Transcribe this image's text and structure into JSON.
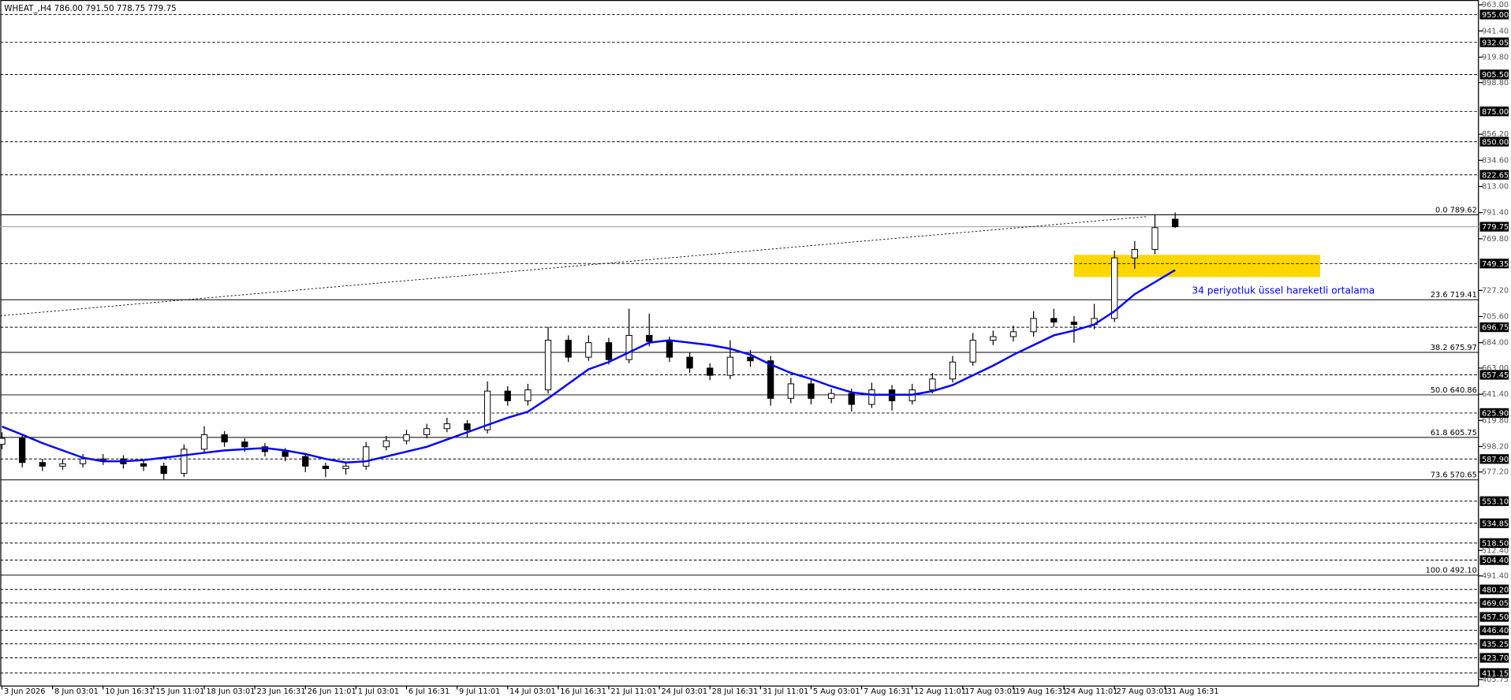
{
  "chart_data": {
    "type": "candlestick",
    "title": "WHEAT_,H4  786.00 791.50 778.75 779.75",
    "ylim": [
      400.8,
      967.0
    ],
    "xlim": [
      -0.5,
      438.1
    ],
    "yticks": [
      {
        "value": 963,
        "label": "963.00"
      },
      {
        "value": 941.4,
        "label": "941.40"
      },
      {
        "value": 919.8,
        "label": "919.80"
      },
      {
        "value": 898.8,
        "label": "898.80"
      },
      {
        "value": 856.2,
        "label": "856.20"
      },
      {
        "value": 834.6,
        "label": "834.60"
      },
      {
        "value": 813,
        "label": "813.00"
      },
      {
        "value": 791.4,
        "label": "791.40"
      },
      {
        "value": 769.8,
        "label": "769.80"
      },
      {
        "value": 727.2,
        "label": "727.20"
      },
      {
        "value": 705.6,
        "label": "705.60"
      },
      {
        "value": 684,
        "label": "684.00"
      },
      {
        "value": 663,
        "label": "663.00"
      },
      {
        "value": 641.4,
        "label": "641.40"
      },
      {
        "value": 619.8,
        "label": "619.80"
      },
      {
        "value": 598.2,
        "label": "598.20"
      },
      {
        "value": 577.2,
        "label": "577.20"
      },
      {
        "value": 512.4,
        "label": "512.40"
      },
      {
        "value": 491.4,
        "label": "491.40"
      },
      {
        "value": 405.75,
        "label": "405.75"
      }
    ],
    "xticks": [
      {
        "value": 0,
        "label": "3 Jun 2026"
      },
      {
        "value": 15,
        "label": "8 Jun 03:01"
      },
      {
        "value": 30,
        "label": "10 Jun 16:31"
      },
      {
        "value": 45,
        "label": "15 Jun 11:01"
      },
      {
        "value": 60,
        "label": "18 Jun 03:01"
      },
      {
        "value": 75,
        "label": "23 Jun 16:31"
      },
      {
        "value": 90,
        "label": "26 Jun 11:01"
      },
      {
        "value": 105,
        "label": "1 Jul 03:01"
      },
      {
        "value": 120,
        "label": "6 Jul 16:31"
      },
      {
        "value": 135,
        "label": "9 Jul 11:01"
      },
      {
        "value": 150,
        "label": "14 Jul 03:01"
      },
      {
        "value": 165,
        "label": "16 Jul 16:31"
      },
      {
        "value": 180,
        "label": "21 Jul 11:01"
      },
      {
        "value": 195,
        "label": "24 Jul 03:01"
      },
      {
        "value": 210,
        "label": "28 Jul 16:31"
      },
      {
        "value": 225,
        "label": "31 Jul 11:01"
      },
      {
        "value": 240,
        "label": "5 Aug 03:01"
      },
      {
        "value": 255,
        "label": "7 Aug 16:31"
      },
      {
        "value": 270,
        "label": "12 Aug 11:01"
      },
      {
        "value": 285,
        "label": "17 Aug 03:01"
      },
      {
        "value": 300,
        "label": "19 Aug 16:31"
      },
      {
        "value": 315,
        "label": "24 Aug 11:01"
      },
      {
        "value": 330,
        "label": "27 Aug 03:01"
      },
      {
        "value": 345,
        "label": "31 Aug 16:31"
      }
    ],
    "x": [
      0,
      6,
      12,
      18,
      24,
      30,
      36,
      42,
      48,
      54,
      60,
      66,
      72,
      78,
      84,
      90,
      96,
      102,
      108,
      114,
      120,
      126,
      132,
      138,
      144,
      150,
      156,
      162,
      168,
      174,
      180,
      186,
      192,
      198,
      204,
      210,
      216,
      222,
      228,
      234,
      240,
      246,
      252,
      258,
      264,
      270,
      276,
      282,
      288,
      294,
      300,
      306,
      312,
      318,
      324,
      330,
      336,
      342,
      348
    ],
    "ohlc": [
      [
        600,
        610,
        596,
        605
      ],
      [
        605,
        608,
        581,
        585
      ],
      [
        585,
        588,
        578,
        582
      ],
      [
        582,
        588,
        579,
        584
      ],
      [
        584,
        592,
        581,
        588
      ],
      [
        588,
        592,
        583,
        588
      ],
      [
        588,
        591,
        580,
        584
      ],
      [
        584,
        587,
        578,
        582
      ],
      [
        582,
        585,
        571,
        576
      ],
      [
        576,
        600,
        573,
        596
      ],
      [
        596,
        615,
        593,
        608
      ],
      [
        608,
        611,
        598,
        602
      ],
      [
        602,
        605,
        594,
        598
      ],
      [
        598,
        601,
        590,
        594
      ],
      [
        594,
        597,
        586,
        590
      ],
      [
        590,
        593,
        577,
        582
      ],
      [
        582,
        585,
        573,
        580
      ],
      [
        580,
        586,
        575,
        582
      ],
      [
        582,
        602,
        579,
        598
      ],
      [
        598,
        607,
        595,
        603
      ],
      [
        603,
        612,
        600,
        608
      ],
      [
        608,
        617,
        605,
        613
      ],
      [
        613,
        622,
        610,
        617
      ],
      [
        617,
        620,
        606,
        612
      ],
      [
        612,
        652,
        609,
        644
      ],
      [
        644,
        648,
        632,
        636
      ],
      [
        636,
        650,
        632,
        645
      ],
      [
        645,
        697,
        642,
        686
      ],
      [
        686,
        690,
        668,
        672
      ],
      [
        672,
        690,
        669,
        684
      ],
      [
        684,
        688,
        666,
        670
      ],
      [
        670,
        712,
        667,
        690
      ],
      [
        690,
        708,
        681,
        685
      ],
      [
        685,
        689,
        668,
        672
      ],
      [
        672,
        676,
        659,
        663
      ],
      [
        663,
        667,
        653,
        657
      ],
      [
        657,
        686,
        654,
        672
      ],
      [
        672,
        678,
        664,
        669
      ],
      [
        669,
        673,
        632,
        638
      ],
      [
        638,
        655,
        634,
        650
      ],
      [
        650,
        654,
        633,
        638
      ],
      [
        638,
        646,
        634,
        642
      ],
      [
        642,
        646,
        627,
        633
      ],
      [
        633,
        651,
        630,
        645
      ],
      [
        645,
        649,
        628,
        636
      ],
      [
        636,
        650,
        633,
        645
      ],
      [
        645,
        659,
        642,
        654
      ],
      [
        654,
        673,
        651,
        668
      ],
      [
        668,
        692,
        665,
        686
      ],
      [
        686,
        694,
        682,
        689
      ],
      [
        689,
        698,
        685,
        693
      ],
      [
        693,
        710,
        689,
        704
      ],
      [
        704,
        712,
        697,
        701
      ],
      [
        701,
        706,
        684,
        699
      ],
      [
        699,
        716,
        695,
        704
      ],
      [
        704,
        760,
        701,
        754
      ],
      [
        754,
        768,
        745,
        761
      ],
      [
        761,
        790,
        757,
        779
      ],
      [
        786,
        791.5,
        778.75,
        779.75
      ]
    ],
    "ema": {
      "color": "#0000ff",
      "label": "34 periyotluk üssel hareketli ortalama",
      "values": [
        614.7,
        608,
        601,
        595,
        589,
        586,
        586,
        587,
        589,
        591,
        593,
        595,
        596,
        597,
        595,
        592,
        588,
        585,
        586,
        590,
        594,
        598,
        604,
        610,
        616,
        622,
        627,
        638,
        650,
        662,
        668,
        676,
        684,
        686,
        684,
        682,
        679,
        674,
        666,
        659,
        654,
        648,
        643,
        641,
        641,
        641,
        644,
        649,
        657,
        665,
        674,
        682,
        690,
        694,
        699,
        710,
        724,
        734,
        744
      ]
    },
    "levels": [
      {
        "value": 955,
        "label": "955.00"
      },
      {
        "value": 932.05,
        "label": "932.05"
      },
      {
        "value": 905.5,
        "label": "905.50"
      },
      {
        "value": 875,
        "label": "875.00"
      },
      {
        "value": 850,
        "label": "850.00"
      },
      {
        "value": 822.65,
        "label": "822.65"
      },
      {
        "value": 749.35,
        "label": "749.35"
      },
      {
        "value": 696.75,
        "label": "696.75"
      },
      {
        "value": 657.45,
        "label": "657.45"
      },
      {
        "value": 625.9,
        "label": "625.90"
      },
      {
        "value": 587.9,
        "label": "587.90"
      },
      {
        "value": 553.1,
        "label": "553.10"
      },
      {
        "value": 534.85,
        "label": "534.85"
      },
      {
        "value": 518.5,
        "label": "518.50"
      },
      {
        "value": 504.4,
        "label": "504.40"
      },
      {
        "value": 480.2,
        "label": "480.20"
      },
      {
        "value": 469.05,
        "label": "469.05"
      },
      {
        "value": 457.5,
        "label": "457.50"
      },
      {
        "value": 446.4,
        "label": "446.40"
      },
      {
        "value": 435.25,
        "label": "435.25"
      },
      {
        "value": 423.7,
        "label": "423.70"
      },
      {
        "value": 411.15,
        "label": "411.15"
      }
    ],
    "current_price": {
      "value": 779.75,
      "label": "779.75"
    },
    "fibonacci": [
      {
        "value": 789.62,
        "label": "0.0 789.62"
      },
      {
        "value": 719.41,
        "label": "23.6 719.41"
      },
      {
        "value": 675.97,
        "label": "38.2 675.97"
      },
      {
        "value": 640.86,
        "label": "50.0 640.86"
      },
      {
        "value": 605.75,
        "label": "61.8 605.75"
      },
      {
        "value": 570.65,
        "label": "73.6 570.65"
      },
      {
        "value": 492.1,
        "label": "100.0 492.10"
      }
    ],
    "zone": {
      "x": [
        318,
        391
      ],
      "y": [
        738.2,
        756.5
      ],
      "color": "#ffd700"
    },
    "trendline": {
      "x": [
        -0.5,
        339.5
      ],
      "y": [
        706.2,
        788.1
      ]
    }
  }
}
